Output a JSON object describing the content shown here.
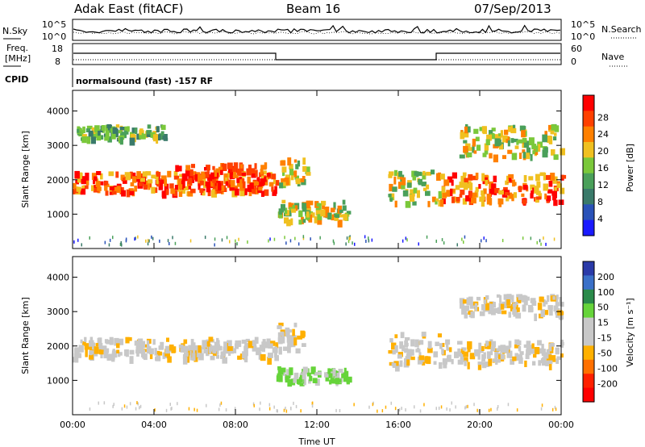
{
  "header": {
    "radar": "Adak East (fitACF)",
    "beam": "Beam 16",
    "date": "07/Sep/2013"
  },
  "strip_labels": {
    "nsky": "N.Sky",
    "nsearch": "N.Search",
    "freq_line1": "Freq.",
    "freq_line2": "[MHz]",
    "nave": "Nave",
    "cpid": "CPID"
  },
  "noise_ticks": {
    "left": [
      "10^5",
      "10^0"
    ],
    "right": [
      "10^5",
      "10^0"
    ]
  },
  "freq_ticks": {
    "left": [
      "18",
      "8"
    ],
    "right": [
      "60",
      "0"
    ]
  },
  "cpid_text": "normalsound (fast) -157 RF",
  "colors": {
    "power": [
      "#1a1aff",
      "#2a52b8",
      "#3a7a6a",
      "#4aa05a",
      "#7ac83a",
      "#f0c020",
      "#ff8000",
      "#ff4000",
      "#ff0000"
    ],
    "velocity": [
      "#2a3aa8",
      "#3a70c8",
      "#2a8a4a",
      "#66d43a",
      "#c8c8c8",
      "#c8c8c8",
      "#ffb000",
      "#ff7000",
      "#ff2000",
      "#ff0000"
    ]
  },
  "chart_data": [
    {
      "type": "heatmap",
      "name": "power",
      "ylabel": "Slant Range [km]",
      "ylim": [
        0,
        4600
      ],
      "yticks": [
        1000,
        2000,
        3000,
        4000
      ],
      "xlim_hours": [
        0,
        24
      ],
      "xticks": [
        "00:00",
        "04:00",
        "08:00",
        "12:00",
        "16:00",
        "20:00",
        "00:00"
      ],
      "colorbar": {
        "label": "Power [dB]",
        "ticks": [
          "4",
          "8",
          "12",
          "16",
          "20",
          "24",
          "28"
        ]
      },
      "echo_bands": [
        {
          "t": [
            0,
            10
          ],
          "range": [
            1550,
            2150
          ],
          "level": "high"
        },
        {
          "t": [
            5,
            9.5
          ],
          "range": [
            1600,
            2400
          ],
          "level": "peak"
        },
        {
          "t": [
            10,
            11.5
          ],
          "range": [
            1800,
            2600
          ],
          "level": "mid"
        },
        {
          "t": [
            10,
            13.5
          ],
          "range": [
            700,
            1300
          ],
          "level": "mid"
        },
        {
          "t": [
            0.2,
            4.5
          ],
          "range": [
            3100,
            3500
          ],
          "level": "low"
        },
        {
          "t": [
            15.5,
            18
          ],
          "range": [
            1200,
            2200
          ],
          "level": "mid"
        },
        {
          "t": [
            18,
            24
          ],
          "range": [
            1300,
            2100
          ],
          "level": "high"
        },
        {
          "t": [
            19,
            24
          ],
          "range": [
            2600,
            3500
          ],
          "level": "mid"
        }
      ]
    },
    {
      "type": "heatmap",
      "name": "velocity",
      "ylabel": "Slant Range [km]",
      "ylim": [
        0,
        4600
      ],
      "yticks": [
        1000,
        2000,
        3000,
        4000
      ],
      "xlim_hours": [
        0,
        24
      ],
      "xticks": [
        "00:00",
        "04:00",
        "08:00",
        "12:00",
        "16:00",
        "20:00",
        "00:00"
      ],
      "xlabel": "Time UT",
      "colorbar": {
        "label": "Velocity [m s⁻¹]",
        "ticks": [
          "200",
          "100",
          "50",
          "15",
          "-15",
          "-50",
          "-100",
          "-200"
        ]
      },
      "echo_bands": [
        {
          "t": [
            0,
            10
          ],
          "range": [
            1550,
            2150
          ],
          "level": "zero"
        },
        {
          "t": [
            10,
            11.5
          ],
          "range": [
            1800,
            2600
          ],
          "level": "zero"
        },
        {
          "t": [
            10,
            13.5
          ],
          "range": [
            900,
            1300
          ],
          "level": "pos50"
        },
        {
          "t": [
            15.5,
            18
          ],
          "range": [
            1300,
            2300
          ],
          "level": "zero"
        },
        {
          "t": [
            18,
            24
          ],
          "range": [
            1400,
            2100
          ],
          "level": "zero"
        },
        {
          "t": [
            19,
            24
          ],
          "range": [
            2800,
            3400
          ],
          "level": "zero"
        }
      ]
    }
  ]
}
